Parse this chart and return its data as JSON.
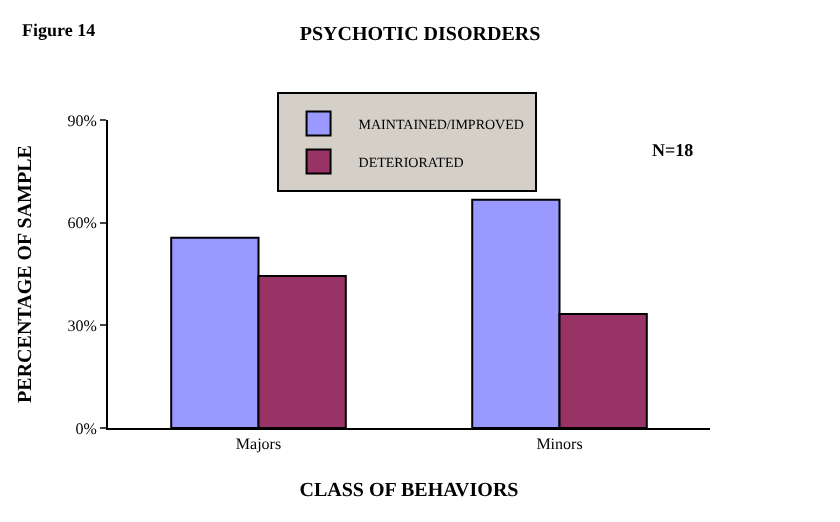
{
  "chart_data": {
    "type": "bar",
    "title": "PSYCHOTIC DISORDERS",
    "xlabel": "CLASS OF BEHAVIORS",
    "ylabel": "PERCENTAGE OF SAMPLE",
    "categories": [
      "Majors",
      "Minors"
    ],
    "series": [
      {
        "name": "MAINTAINED/IMPROVED",
        "color": "#9999ff",
        "values": [
          55.6,
          66.7
        ]
      },
      {
        "name": "DETERIORATED",
        "color": "#993366",
        "values": [
          44.4,
          33.3
        ]
      }
    ],
    "ylim": [
      0,
      90
    ],
    "yticks": [
      {
        "value": 0,
        "label": "0%"
      },
      {
        "value": 30,
        "label": "30%"
      },
      {
        "value": 60,
        "label": "60%"
      },
      {
        "value": 90,
        "label": "90%"
      }
    ],
    "legend": "top",
    "annotations": [
      "Figure 14",
      "N=18"
    ]
  }
}
